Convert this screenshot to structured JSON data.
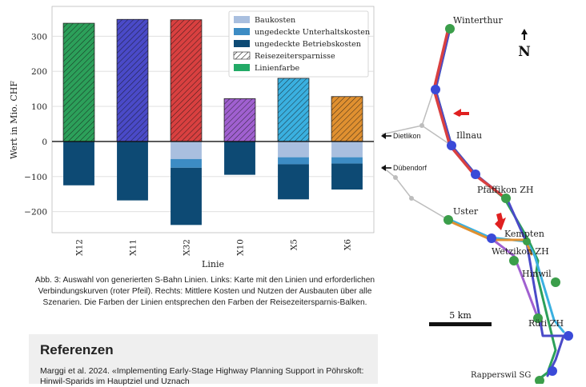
{
  "chart_data": {
    "type": "bar",
    "categories": [
      "X12",
      "X11",
      "X32",
      "X10",
      "X5",
      "X6"
    ],
    "series": [
      {
        "name": "Reisezeitersparnisse",
        "values": [
          337,
          348,
          347,
          122,
          180,
          128
        ]
      },
      {
        "name": "Baukosten",
        "values": [
          0,
          0,
          -50,
          0,
          -45,
          -45
        ]
      },
      {
        "name": "ungedeckte Unterhaltskosten",
        "values": [
          0,
          0,
          -25,
          0,
          -20,
          -18
        ]
      },
      {
        "name": "ungedeckte Betriebskosten",
        "values": [
          -125,
          -168,
          -163,
          -95,
          -100,
          -74
        ]
      }
    ],
    "line_colors": [
      "#2ca05a",
      "#4a4ac8",
      "#d94040",
      "#a060d0",
      "#3ab0e0",
      "#e09030"
    ],
    "legend_entries": [
      "Baukosten",
      "ungedeckte Unterhaltskosten",
      "ungedeckte Betriebskosten",
      "Reisezeitersparnisse",
      "Linienfarbe"
    ],
    "legend_colors": [
      "#a9bfdf",
      "#3d8cc4",
      "#0d4a74",
      "hatch",
      "#22aa66"
    ],
    "xlabel": "Linie",
    "ylabel": "Wert in Mio. CHF",
    "ylim": [
      -260,
      385
    ],
    "yticks": [
      300,
      200,
      100,
      0,
      -100,
      -200
    ],
    "grid": true,
    "legend_position": "top-right"
  },
  "caption": "Abb. 3: Auswahl von generierten S-Bahn Linien. Links: Karte mit den Linien und erforderlichen Verbindungskurven (roter Pfeil). Rechts: Mittlere Kosten und Nutzen der Ausbauten über alle Szenarien. Die Farben der Linien entsprechen den Farben der Reisezeitersparnis-Balken.",
  "references": {
    "title": "Referenzen",
    "text": "Marggi et al. 2024. «Implementing Early-Stage Highway Planning Support in Pöhrskoft: Hinwil-Sparids im Hauptziel und Uznach"
  },
  "map": {
    "stations": [
      "Winterthur",
      "Illnau",
      "Pfäffikon ZH",
      "Uster",
      "Kempten",
      "Wetzikon ZH",
      "Hinwil",
      "Rüti ZH",
      "Rapperswil SG"
    ],
    "exits": [
      "Dietlikon",
      "Dübendorf"
    ],
    "north_label": "N",
    "scale_label": "5 km"
  }
}
